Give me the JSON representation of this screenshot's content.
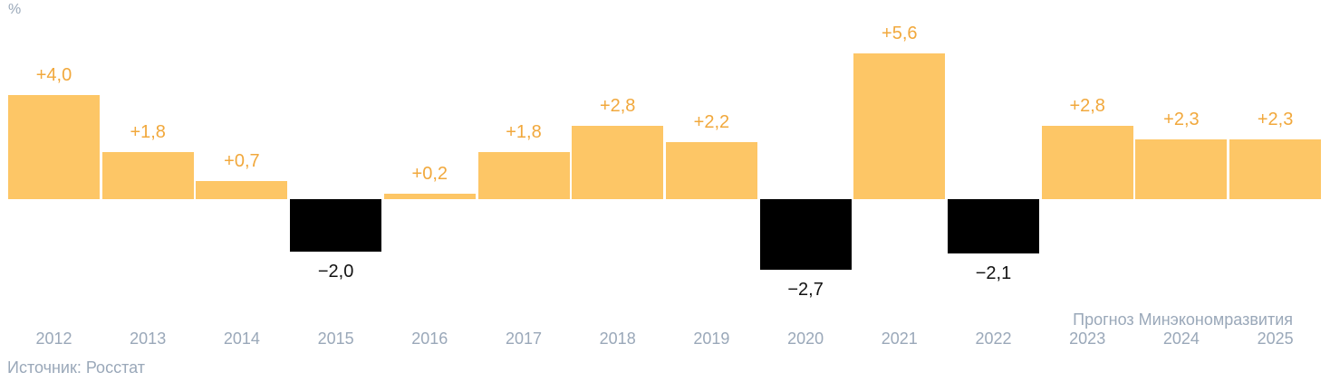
{
  "chart_data": {
    "type": "bar",
    "unit_label": "%",
    "categories": [
      "2012",
      "2013",
      "2014",
      "2015",
      "2016",
      "2017",
      "2018",
      "2019",
      "2020",
      "2021",
      "2022",
      "2023",
      "2024",
      "2025"
    ],
    "values": [
      4.0,
      1.8,
      0.7,
      -2.0,
      0.2,
      1.8,
      2.8,
      2.2,
      -2.7,
      5.6,
      -2.1,
      2.8,
      2.3,
      2.3
    ],
    "value_labels": [
      "+4,0",
      "+1,8",
      "+0,7",
      "−2,0",
      "+0,2",
      "+1,8",
      "+2,8",
      "+2,2",
      "−2,7",
      "+5,6",
      "−2,1",
      "+2,8",
      "+2,3",
      "+2,3"
    ],
    "forecast_note": "Прогноз Минэкономразвития",
    "forecast_years": [
      "2023",
      "2024",
      "2025"
    ],
    "source": "Источник: Росстат",
    "ylim": [
      -3.5,
      6.5
    ],
    "grid": false,
    "legend": "none",
    "colors": {
      "bar_positive": "#FDC666",
      "bar_negative": "#000000",
      "label_positive": "#F1A83C",
      "label_negative": "#121212",
      "axis_text": "#9AA8B9"
    }
  }
}
